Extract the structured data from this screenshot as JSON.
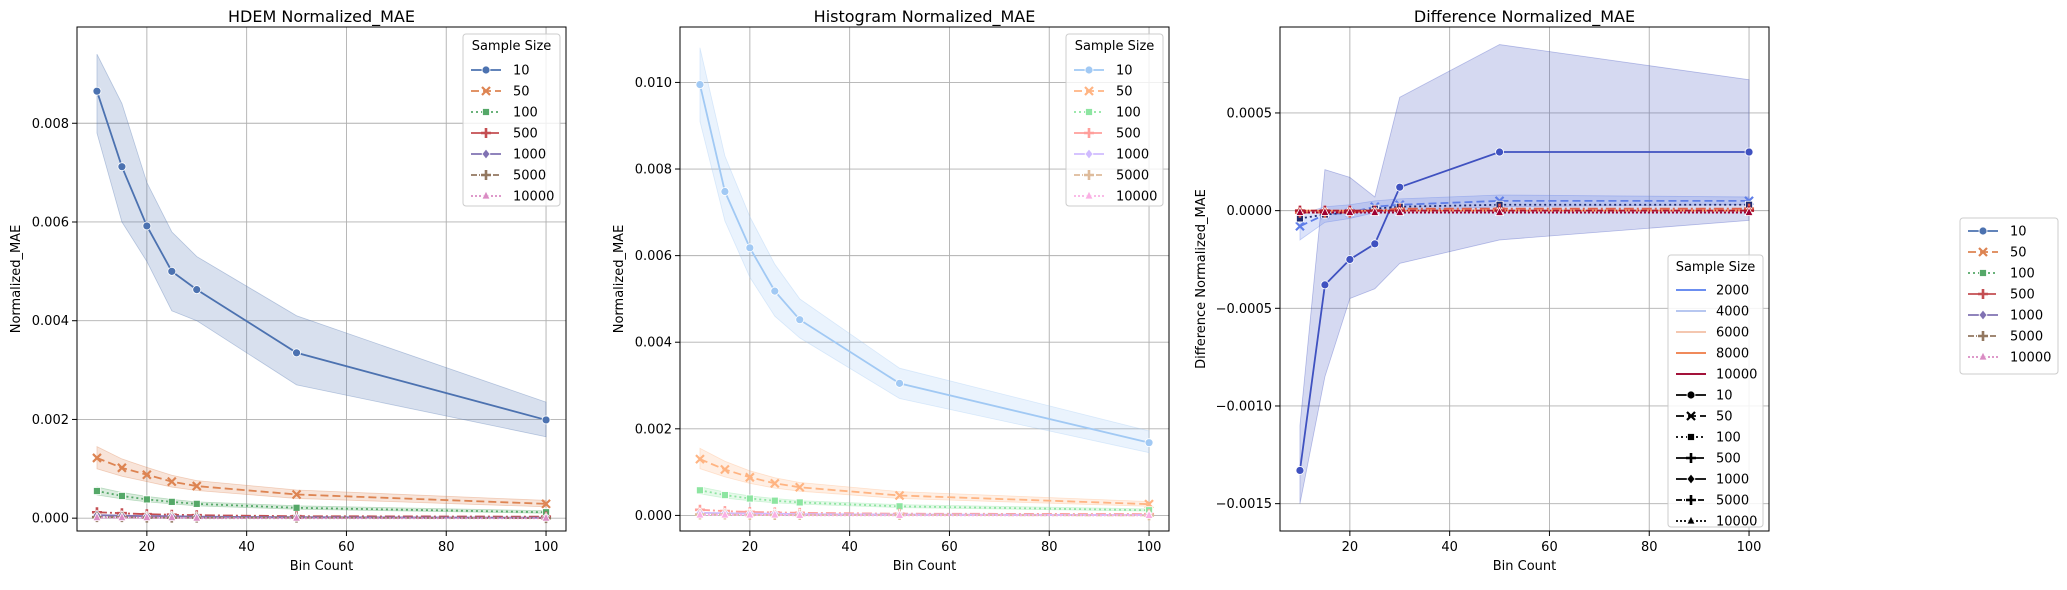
{
  "chart_data": [
    {
      "type": "line",
      "title": "HDEM Normalized_MAE",
      "xlabel": "Bin Count",
      "ylabel": "Normalized_MAE",
      "xlim": [
        6,
        104
      ],
      "ylim": [
        -0.00026,
        0.00995
      ],
      "xticks": [
        20,
        40,
        60,
        80,
        100
      ],
      "yticks": [
        0.0,
        0.002,
        0.004,
        0.006,
        0.008
      ],
      "ytick_labels": [
        "0.000",
        "0.002",
        "0.004",
        "0.006",
        "0.008"
      ],
      "grid": true,
      "legend": {
        "title": "Sample Size",
        "placement": "top-right"
      },
      "x": [
        10,
        15,
        20,
        25,
        30,
        50,
        100
      ],
      "series": [
        {
          "name": "10",
          "color": "#4c72b0",
          "dash": "",
          "marker": "circle",
          "values": [
            0.00865,
            0.00712,
            0.00592,
            0.005,
            0.00463,
            0.00335,
            0.00199
          ],
          "lower": [
            0.0078,
            0.006,
            0.0052,
            0.0042,
            0.004,
            0.0027,
            0.00165
          ],
          "upper": [
            0.0094,
            0.0084,
            0.0068,
            0.0058,
            0.0053,
            0.0041,
            0.00235
          ]
        },
        {
          "name": "50",
          "color": "#dd8452",
          "dash": "8,4",
          "marker": "x",
          "values": [
            0.00122,
            0.00102,
            0.00088,
            0.00074,
            0.00065,
            0.00048,
            0.00029
          ],
          "lower": [
            0.001,
            0.00085,
            0.00074,
            0.00063,
            0.00056,
            0.0004,
            0.00023
          ],
          "upper": [
            0.00145,
            0.0012,
            0.00103,
            0.00087,
            0.00076,
            0.00057,
            0.00036
          ]
        },
        {
          "name": "100",
          "color": "#55a868",
          "dash": "2,3",
          "marker": "square",
          "values": [
            0.00055,
            0.00045,
            0.00038,
            0.00033,
            0.00029,
            0.00021,
            0.00012
          ],
          "lower": [
            0.00047,
            0.00039,
            0.00033,
            0.00029,
            0.00025,
            0.00018,
            0.0001
          ],
          "upper": [
            0.00063,
            0.00052,
            0.00044,
            0.00038,
            0.00033,
            0.00025,
            0.00015
          ]
        },
        {
          "name": "500",
          "color": "#c44e52",
          "dash": "10,3,2,3",
          "marker": "plus",
          "values": [
            0.00012,
            0.0001,
            8e-05,
            7e-05,
            6e-05,
            4e-05,
            3e-05
          ]
        },
        {
          "name": "1000",
          "color": "#8172b3",
          "dash": "",
          "marker": "diamond",
          "values": [
            6e-05,
            5e-05,
            4e-05,
            4e-05,
            3e-05,
            2e-05,
            1e-05
          ]
        },
        {
          "name": "5000",
          "color": "#937860",
          "dash": "6,2,1,2",
          "marker": "plus",
          "values": [
            2e-05,
            2e-05,
            1e-05,
            1e-05,
            1e-05,
            1e-05,
            0.0
          ]
        },
        {
          "name": "10000",
          "color": "#da8bc3",
          "dash": "2,2",
          "marker": "triangle",
          "values": [
            1e-05,
            1e-05,
            1e-05,
            1e-05,
            0.0,
            0.0,
            0.0
          ]
        }
      ]
    },
    {
      "type": "line",
      "title": "Histogram Normalized_MAE",
      "xlabel": "Bin Count",
      "ylabel": "Normalized_MAE",
      "xlim": [
        6,
        104
      ],
      "ylim": [
        -0.00036,
        0.01128
      ],
      "xticks": [
        20,
        40,
        60,
        80,
        100
      ],
      "yticks": [
        0.0,
        0.002,
        0.004,
        0.006,
        0.008,
        0.01
      ],
      "ytick_labels": [
        "0.000",
        "0.002",
        "0.004",
        "0.006",
        "0.008",
        "0.010"
      ],
      "grid": true,
      "legend": {
        "title": "Sample Size",
        "placement": "top-right"
      },
      "x": [
        10,
        15,
        20,
        25,
        30,
        50,
        100
      ],
      "series": [
        {
          "name": "10",
          "color": "#a1c9f4",
          "dash": "",
          "marker": "circle",
          "values": [
            0.00995,
            0.00748,
            0.00618,
            0.00518,
            0.00452,
            0.00305,
            0.00168
          ],
          "lower": [
            0.0091,
            0.0068,
            0.0055,
            0.0046,
            0.0041,
            0.0027,
            0.00145
          ],
          "upper": [
            0.0108,
            0.0083,
            0.0069,
            0.0058,
            0.005,
            0.0034,
            0.00195
          ]
        },
        {
          "name": "50",
          "color": "#ffb482",
          "dash": "8,4",
          "marker": "x",
          "values": [
            0.0013,
            0.00106,
            0.00088,
            0.00074,
            0.00065,
            0.00046,
            0.00026
          ],
          "lower": [
            0.00108,
            0.00089,
            0.00074,
            0.00063,
            0.00056,
            0.00039,
            0.00021
          ],
          "upper": [
            0.00155,
            0.00125,
            0.00103,
            0.00087,
            0.00076,
            0.00055,
            0.00032
          ]
        },
        {
          "name": "100",
          "color": "#8de5a1",
          "dash": "2,3",
          "marker": "square",
          "values": [
            0.00058,
            0.00047,
            0.00039,
            0.00034,
            0.0003,
            0.00021,
            0.00012
          ],
          "lower": [
            0.0005,
            0.0004,
            0.00034,
            0.00029,
            0.00026,
            0.00018,
            0.0001
          ],
          "upper": [
            0.00066,
            0.00054,
            0.00045,
            0.00039,
            0.00034,
            0.00025,
            0.00015
          ]
        },
        {
          "name": "500",
          "color": "#ff9f9b",
          "dash": "10,3,2,3",
          "marker": "plus",
          "values": [
            0.00013,
            0.0001,
            8e-05,
            7e-05,
            6e-05,
            4e-05,
            3e-05
          ]
        },
        {
          "name": "1000",
          "color": "#d0bbff",
          "dash": "",
          "marker": "diamond",
          "values": [
            6e-05,
            5e-05,
            4e-05,
            4e-05,
            3e-05,
            2e-05,
            1e-05
          ]
        },
        {
          "name": "5000",
          "color": "#debb9b",
          "dash": "6,2,1,2",
          "marker": "plus",
          "values": [
            2e-05,
            2e-05,
            1e-05,
            1e-05,
            1e-05,
            1e-05,
            0.0
          ]
        },
        {
          "name": "10000",
          "color": "#fab0e4",
          "dash": "2,2",
          "marker": "triangle",
          "values": [
            1e-05,
            1e-05,
            1e-05,
            1e-05,
            0.0,
            0.0,
            0.0
          ]
        }
      ]
    },
    {
      "type": "line",
      "title": "Difference Normalized_MAE",
      "xlabel": "Bin Count",
      "ylabel": "Difference Normalized_MAE",
      "xlim": [
        6,
        104
      ],
      "ylim": [
        -0.00164,
        0.00094
      ],
      "xticks": [
        20,
        40,
        60,
        80,
        100
      ],
      "yticks": [
        -0.0015,
        -0.001,
        -0.0005,
        0.0,
        0.0005
      ],
      "ytick_labels": [
        "−0.0015",
        "−0.0010",
        "−0.0005",
        "0.0000",
        "0.0005"
      ],
      "grid": true,
      "legend": {
        "title": "Sample Size",
        "placement": "lower-right"
      },
      "x": [
        10,
        15,
        20,
        25,
        30,
        50,
        100
      ],
      "series": [
        {
          "name": "10",
          "color": "#3f51c0",
          "dash": "",
          "marker": "circle",
          "values": [
            -0.00133,
            -0.00038,
            -0.00025,
            -0.00017,
            0.00012,
            0.0003,
            0.0003
          ],
          "lower": [
            -0.0015,
            -0.00085,
            -0.00045,
            -0.0004,
            -0.00027,
            -0.00015,
            -5e-05
          ],
          "upper": [
            -0.0011,
            0.00021,
            0.00017,
            7e-05,
            0.00058,
            0.00085,
            0.00067
          ]
        },
        {
          "name": "50",
          "color": "#5f7ee8",
          "dash": "8,4",
          "marker": "x",
          "values": [
            -8e-05,
            -2e-05,
            -1e-05,
            2e-05,
            3e-05,
            5e-05,
            5e-05
          ],
          "lower": [
            -0.00015,
            -6e-05,
            -4e-05,
            -1e-05,
            0.0,
            2e-05,
            3e-05
          ],
          "upper": [
            -2e-05,
            2e-05,
            3e-05,
            5e-05,
            6e-05,
            8e-05,
            7e-05
          ]
        },
        {
          "name": "100",
          "color": "#1f2a6e",
          "dash": "2,3",
          "marker": "square",
          "values": [
            -4e-05,
            -2e-05,
            -1e-05,
            1e-05,
            2e-05,
            3e-05,
            3e-05
          ]
        },
        {
          "name": "500",
          "color": "#e0604a",
          "dash": "10,3,2,3",
          "marker": "plus",
          "values": [
            -1e-05,
            -1e-05,
            -1e-05,
            0.0,
            1e-05,
            1e-05,
            1e-05
          ]
        },
        {
          "name": "1000",
          "color": "#f08a5b",
          "dash": "",
          "marker": "diamond",
          "values": [
            0.0,
            0.0,
            0.0,
            0.0,
            0.0,
            0.0,
            0.0
          ]
        },
        {
          "name": "5000",
          "color": "#b2182b",
          "dash": "6,2,1,2",
          "marker": "plus",
          "values": [
            0.0,
            0.0,
            0.0,
            0.0,
            0.0,
            0.0,
            0.0
          ]
        },
        {
          "name": "10000",
          "color": "#9e0031",
          "dash": "2,2",
          "marker": "triangle",
          "values": [
            -1e-05,
            -1e-05,
            -1e-05,
            -1e-05,
            -1e-05,
            -1e-05,
            -1e-05
          ]
        }
      ],
      "legend_hue": [
        {
          "name": "2000",
          "color": "#6b8ef0"
        },
        {
          "name": "4000",
          "color": "#b7c7f0"
        },
        {
          "name": "6000",
          "color": "#f4c7b0"
        },
        {
          "name": "8000",
          "color": "#f08a5b"
        },
        {
          "name": "10000",
          "color": "#a3123a"
        }
      ],
      "legend_style": [
        {
          "name": "10",
          "dash": "",
          "marker": "circle"
        },
        {
          "name": "50",
          "dash": "8,4",
          "marker": "x"
        },
        {
          "name": "100",
          "dash": "2,3",
          "marker": "square"
        },
        {
          "name": "500",
          "dash": "10,3,2,3",
          "marker": "plus"
        },
        {
          "name": "1000",
          "dash": "",
          "marker": "diamond"
        },
        {
          "name": "5000",
          "dash": "6,2,1,2",
          "marker": "plus"
        },
        {
          "name": "10000",
          "dash": "2,2",
          "marker": "triangle"
        }
      ]
    }
  ],
  "outer_legend": {
    "placement": "right",
    "entries": [
      {
        "name": "10",
        "color": "#4c72b0",
        "dash": "",
        "marker": "circle"
      },
      {
        "name": "50",
        "color": "#dd8452",
        "dash": "8,4",
        "marker": "x"
      },
      {
        "name": "100",
        "color": "#55a868",
        "dash": "2,3",
        "marker": "square"
      },
      {
        "name": "500",
        "color": "#c44e52",
        "dash": "10,3,2,3",
        "marker": "plus"
      },
      {
        "name": "1000",
        "color": "#8172b3",
        "dash": "",
        "marker": "diamond"
      },
      {
        "name": "5000",
        "color": "#937860",
        "dash": "6,2,1,2",
        "marker": "plus"
      },
      {
        "name": "10000",
        "color": "#da8bc3",
        "dash": "2,2",
        "marker": "triangle"
      }
    ]
  }
}
